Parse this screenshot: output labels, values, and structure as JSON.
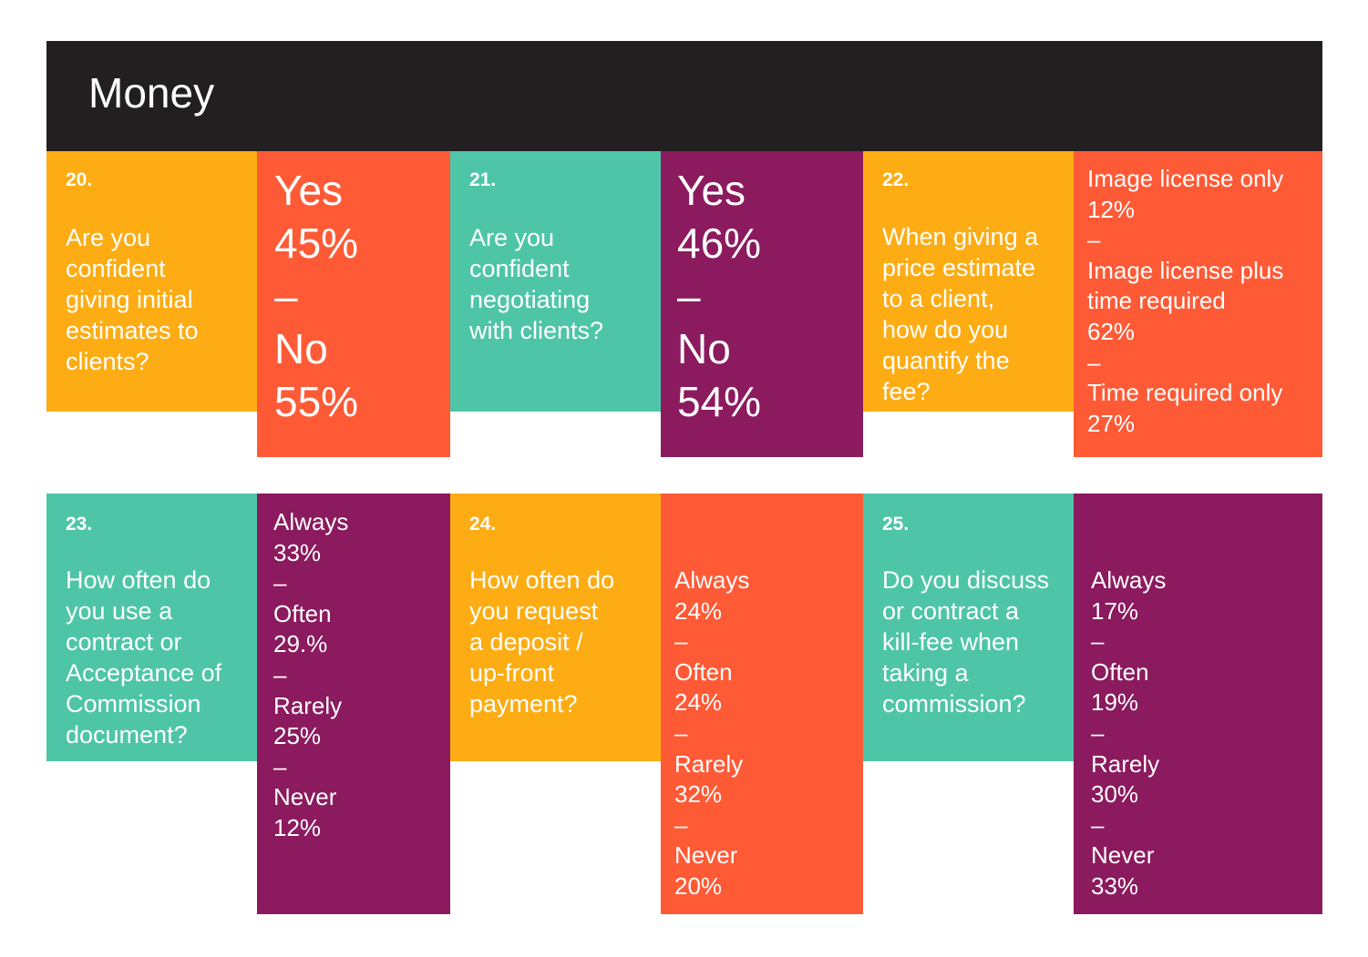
{
  "header": {
    "title": "Money"
  },
  "colors": {
    "black": "#231f20",
    "yellow": "#fdac13",
    "orange": "#ff5a36",
    "teal": "#4ec5a7",
    "purple": "#8b1a5e"
  },
  "q20": {
    "number": "20.",
    "question": [
      "Are you",
      "confident",
      "giving initial",
      "estimates to",
      "clients?"
    ],
    "answer": [
      "Yes",
      "45%",
      "–",
      "No",
      "55%"
    ]
  },
  "q21": {
    "number": "21.",
    "question": [
      "Are you",
      "confident",
      "negotiating",
      "with clients?"
    ],
    "answer": [
      "Yes",
      "46%",
      "–",
      "No",
      "54%"
    ]
  },
  "q22": {
    "number": "22.",
    "question": [
      "When giving a",
      "price estimate",
      "to a client,",
      "how do you",
      "quantify the",
      "fee?"
    ],
    "answer": [
      "Image license only",
      "12%",
      "–",
      "Image license plus",
      "time required",
      "62%",
      "–",
      "Time required only",
      "27%"
    ]
  },
  "q23": {
    "number": "23.",
    "question": [
      "How often do",
      "you use a",
      "contract or",
      "Acceptance of",
      "Commission",
      "document?"
    ],
    "answer": [
      "Always",
      "33%",
      "–",
      "Often",
      "29.%",
      "–",
      "Rarely",
      "25%",
      "–",
      "Never",
      "12%"
    ]
  },
  "q24": {
    "number": "24.",
    "question": [
      "How often do",
      "you request",
      "a deposit /",
      "up-front",
      "payment?"
    ],
    "answer": [
      "Always",
      "24%",
      "–",
      "Often",
      "24%",
      "–",
      "Rarely",
      "32%",
      "–",
      "Never",
      "20%"
    ]
  },
  "q25": {
    "number": "25.",
    "question": [
      "Do you discuss",
      "or contract a",
      "kill-fee when",
      "taking a",
      "commission?"
    ],
    "answer": [
      "Always",
      "17%",
      "–",
      "Often",
      "19%",
      "–",
      "Rarely",
      "30%",
      "–",
      "Never",
      "33%"
    ]
  }
}
